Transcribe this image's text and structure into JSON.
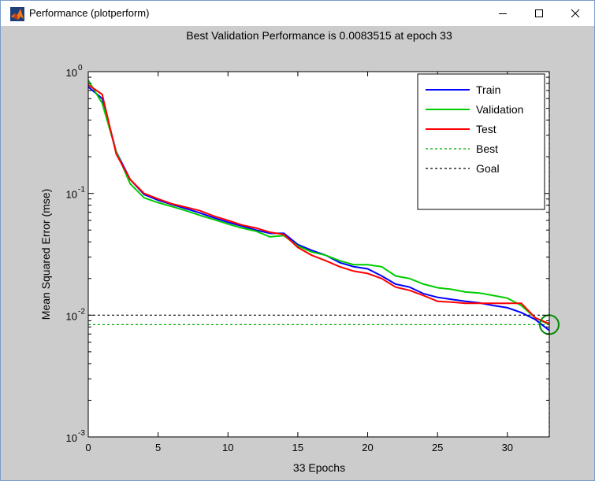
{
  "window": {
    "title": "Performance (plotperform)",
    "icon": "matlab-icon",
    "controls": [
      "minimize-icon",
      "maximize-icon",
      "close-icon"
    ]
  },
  "chart_data": {
    "type": "line",
    "title": "Best Validation Performance is 0.0083515 at epoch 33",
    "xlabel": "33 Epochs",
    "ylabel": "Mean Squared Error  (mse)",
    "yscale": "log",
    "xlim": [
      0,
      33
    ],
    "ylim": [
      0.001,
      1
    ],
    "xticks": [
      "0",
      "5",
      "10",
      "15",
      "20",
      "25",
      "30"
    ],
    "xtick_values": [
      0,
      5,
      10,
      15,
      20,
      25,
      30
    ],
    "ytick_values": [
      0.001,
      0.01,
      0.1,
      1
    ],
    "ytick_exponents": [
      "-3",
      "-2",
      "-1",
      "0"
    ],
    "ytick_base": "10",
    "grid": false,
    "legend_position": "top-right",
    "series": [
      {
        "name": "Train",
        "color": "#0000ff",
        "style": "solid",
        "x": [
          0,
          1,
          2,
          3,
          4,
          5,
          6,
          7,
          8,
          9,
          10,
          11,
          12,
          13,
          14,
          15,
          16,
          17,
          18,
          19,
          20,
          21,
          22,
          23,
          24,
          25,
          26,
          27,
          28,
          29,
          30,
          31,
          32,
          33
        ],
        "values": [
          0.75,
          0.6,
          0.22,
          0.13,
          0.098,
          0.088,
          0.081,
          0.075,
          0.069,
          0.063,
          0.058,
          0.054,
          0.05,
          0.047,
          0.047,
          0.038,
          0.034,
          0.031,
          0.027,
          0.025,
          0.024,
          0.021,
          0.018,
          0.017,
          0.015,
          0.014,
          0.0135,
          0.013,
          0.0126,
          0.012,
          0.0115,
          0.0105,
          0.0092,
          0.0075
        ]
      },
      {
        "name": "Validation",
        "color": "#00cc00",
        "style": "solid",
        "x": [
          0,
          1,
          2,
          3,
          4,
          5,
          6,
          7,
          8,
          9,
          10,
          11,
          12,
          13,
          14,
          15,
          16,
          17,
          18,
          19,
          20,
          21,
          22,
          23,
          24,
          25,
          26,
          27,
          28,
          29,
          30,
          31,
          32,
          33
        ],
        "values": [
          0.85,
          0.55,
          0.22,
          0.12,
          0.092,
          0.084,
          0.078,
          0.072,
          0.066,
          0.061,
          0.056,
          0.052,
          0.049,
          0.044,
          0.045,
          0.037,
          0.033,
          0.031,
          0.028,
          0.026,
          0.026,
          0.025,
          0.021,
          0.02,
          0.018,
          0.0168,
          0.0163,
          0.0155,
          0.0152,
          0.0145,
          0.0138,
          0.012,
          0.0095,
          0.0083515
        ]
      },
      {
        "name": "Test",
        "color": "#ff0000",
        "style": "solid",
        "x": [
          0,
          1,
          2,
          3,
          4,
          5,
          6,
          7,
          8,
          9,
          10,
          11,
          12,
          13,
          14,
          15,
          16,
          17,
          18,
          19,
          20,
          21,
          22,
          23,
          24,
          25,
          26,
          27,
          28,
          29,
          30,
          31,
          32,
          33
        ],
        "values": [
          0.78,
          0.65,
          0.21,
          0.13,
          0.1,
          0.09,
          0.082,
          0.077,
          0.072,
          0.065,
          0.06,
          0.055,
          0.052,
          0.048,
          0.046,
          0.036,
          0.031,
          0.028,
          0.025,
          0.023,
          0.022,
          0.02,
          0.017,
          0.016,
          0.0145,
          0.013,
          0.0128,
          0.0125,
          0.0125,
          0.0125,
          0.0125,
          0.0125,
          0.0095,
          0.0085
        ]
      },
      {
        "name": "Best",
        "color": "#00aa00",
        "style": "dashed",
        "x": [
          0,
          33
        ],
        "values": [
          0.0083515,
          0.0083515
        ]
      },
      {
        "name": "Goal",
        "color": "#000000",
        "style": "dashed",
        "x": [
          0,
          33
        ],
        "values": [
          0.01,
          0.01
        ]
      }
    ],
    "best_epoch": 33,
    "best_value": 0.0083515
  }
}
